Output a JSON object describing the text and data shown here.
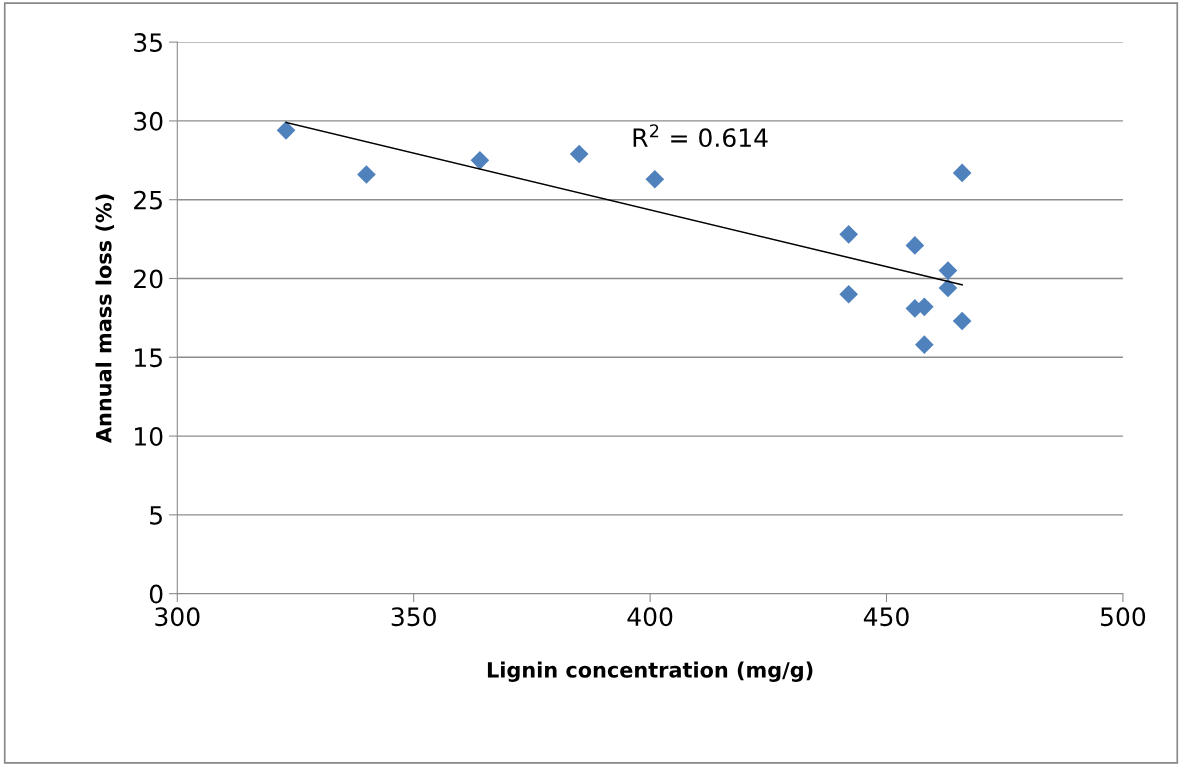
{
  "chart_data": {
    "type": "scatter",
    "xlabel": "Lignin concentration (mg/g)",
    "ylabel": "Annual mass loss (%)",
    "xlim": [
      300,
      500
    ],
    "xticks": [
      300,
      350,
      400,
      450,
      500
    ],
    "ylim": [
      0,
      35
    ],
    "yticks": [
      0,
      5,
      10,
      15,
      20,
      25,
      30,
      35
    ],
    "grid": "y",
    "legend": false,
    "marker": "diamond",
    "annotations": [
      "R$^{2}$ = 0.614"
    ],
    "series": [
      {
        "color": "#4f81bd",
        "x": [
          323,
          340,
          364,
          385,
          401,
          442,
          442,
          456,
          456,
          458,
          458,
          463,
          463,
          466,
          466
        ],
        "values": [
          29.4,
          26.6,
          27.5,
          27.9,
          26.3,
          22.8,
          19.0,
          22.1,
          18.1,
          18.2,
          15.8,
          20.5,
          19.4,
          26.7,
          17.3
        ]
      },
      {
        "type": "line",
        "color": "#000000",
        "marker": "none",
        "x": [
          323,
          466
        ],
        "values": [
          29.9,
          19.6
        ]
      }
    ]
  }
}
